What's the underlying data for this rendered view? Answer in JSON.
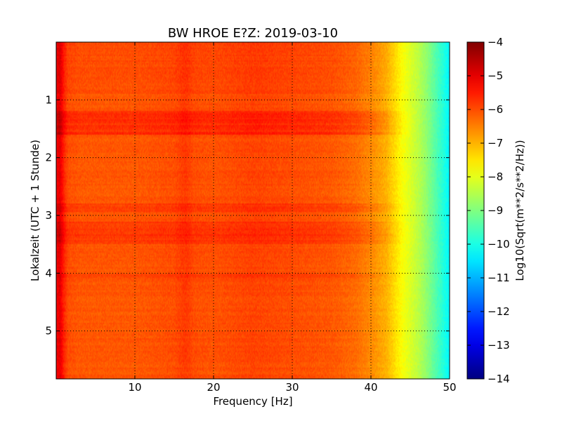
{
  "chart_data": {
    "type": "heatmap",
    "title": "BW HROE E?Z: 2019-03-10",
    "xlabel": "Frequency [Hz]",
    "ylabel": "Lokalzeit (UTC + 1 Stunde)",
    "xlim": [
      0,
      50
    ],
    "ylim": [
      0,
      5.83
    ],
    "y_inverted": true,
    "x_ticks": [
      10,
      20,
      30,
      40,
      50
    ],
    "x_tick_labels": [
      "10",
      "20",
      "30",
      "40",
      "50"
    ],
    "y_ticks": [
      1,
      2,
      3,
      4,
      5
    ],
    "y_tick_labels": [
      "1",
      "2",
      "3",
      "4",
      "5"
    ],
    "grid": true,
    "colormap": "jet",
    "colorbar": {
      "label": "Log10(Sqrt(m**2/s**2/Hz))",
      "min": -14,
      "max": -4,
      "ticks": [
        -4,
        -5,
        -6,
        -7,
        -8,
        -9,
        -10,
        -11,
        -12,
        -13,
        -14
      ],
      "tick_labels": [
        "−4",
        "−5",
        "−6",
        "−7",
        "−8",
        "−9",
        "−10",
        "−11",
        "−12",
        "−13",
        "−14"
      ]
    },
    "frequency_profile": {
      "frequency_hz": [
        0,
        0.5,
        1,
        1.5,
        3,
        10,
        15,
        16,
        16.5,
        17.5,
        20,
        25,
        30,
        35,
        38,
        40,
        42,
        43,
        44,
        45,
        46,
        47,
        48,
        49,
        50
      ],
      "level": [
        -5.2,
        -5.0,
        -5.6,
        -6.0,
        -6.1,
        -6.1,
        -6.0,
        -5.85,
        -5.8,
        -6.0,
        -6.05,
        -5.9,
        -6.0,
        -6.1,
        -6.3,
        -6.6,
        -7.0,
        -7.4,
        -7.8,
        -8.1,
        -8.4,
        -8.8,
        -9.3,
        -9.8,
        -10.3
      ]
    },
    "time_bands": [
      {
        "hours": [
          0.0,
          0.9
        ],
        "offset": 0.1
      },
      {
        "hours": [
          1.2,
          1.6
        ],
        "offset": 0.4
      },
      {
        "hours": [
          2.8,
          2.95
        ],
        "offset": 0.25
      },
      {
        "hours": [
          3.1,
          3.5
        ],
        "offset": 0.3
      },
      {
        "hours": [
          4.0,
          4.1
        ],
        "offset": 0.15
      }
    ]
  }
}
